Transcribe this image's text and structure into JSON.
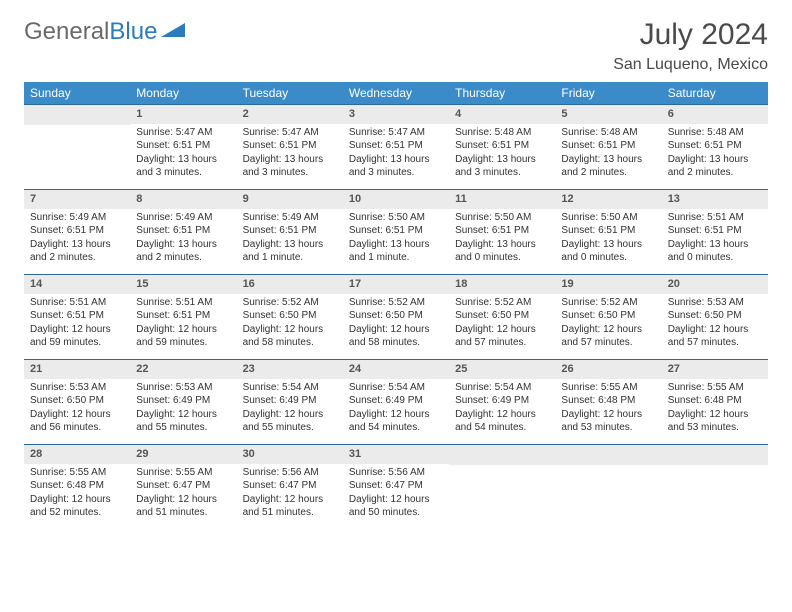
{
  "logo": {
    "part1": "General",
    "part2": "Blue"
  },
  "title": "July 2024",
  "location": "San Luqueno, Mexico",
  "colors": {
    "header_bg": "#3b8bc9",
    "header_text": "#ffffff",
    "daynum_bg": "#ebebeb",
    "row_border": "#2b6aa0",
    "logo_gray": "#6a6a6a",
    "logo_blue": "#2b7bbf"
  },
  "weekdays": [
    "Sunday",
    "Monday",
    "Tuesday",
    "Wednesday",
    "Thursday",
    "Friday",
    "Saturday"
  ],
  "weeks": [
    [
      {
        "n": "",
        "sr": "",
        "ss": "",
        "dl": ""
      },
      {
        "n": "1",
        "sr": "Sunrise: 5:47 AM",
        "ss": "Sunset: 6:51 PM",
        "dl": "Daylight: 13 hours and 3 minutes."
      },
      {
        "n": "2",
        "sr": "Sunrise: 5:47 AM",
        "ss": "Sunset: 6:51 PM",
        "dl": "Daylight: 13 hours and 3 minutes."
      },
      {
        "n": "3",
        "sr": "Sunrise: 5:47 AM",
        "ss": "Sunset: 6:51 PM",
        "dl": "Daylight: 13 hours and 3 minutes."
      },
      {
        "n": "4",
        "sr": "Sunrise: 5:48 AM",
        "ss": "Sunset: 6:51 PM",
        "dl": "Daylight: 13 hours and 3 minutes."
      },
      {
        "n": "5",
        "sr": "Sunrise: 5:48 AM",
        "ss": "Sunset: 6:51 PM",
        "dl": "Daylight: 13 hours and 2 minutes."
      },
      {
        "n": "6",
        "sr": "Sunrise: 5:48 AM",
        "ss": "Sunset: 6:51 PM",
        "dl": "Daylight: 13 hours and 2 minutes."
      }
    ],
    [
      {
        "n": "7",
        "sr": "Sunrise: 5:49 AM",
        "ss": "Sunset: 6:51 PM",
        "dl": "Daylight: 13 hours and 2 minutes."
      },
      {
        "n": "8",
        "sr": "Sunrise: 5:49 AM",
        "ss": "Sunset: 6:51 PM",
        "dl": "Daylight: 13 hours and 2 minutes."
      },
      {
        "n": "9",
        "sr": "Sunrise: 5:49 AM",
        "ss": "Sunset: 6:51 PM",
        "dl": "Daylight: 13 hours and 1 minute."
      },
      {
        "n": "10",
        "sr": "Sunrise: 5:50 AM",
        "ss": "Sunset: 6:51 PM",
        "dl": "Daylight: 13 hours and 1 minute."
      },
      {
        "n": "11",
        "sr": "Sunrise: 5:50 AM",
        "ss": "Sunset: 6:51 PM",
        "dl": "Daylight: 13 hours and 0 minutes."
      },
      {
        "n": "12",
        "sr": "Sunrise: 5:50 AM",
        "ss": "Sunset: 6:51 PM",
        "dl": "Daylight: 13 hours and 0 minutes."
      },
      {
        "n": "13",
        "sr": "Sunrise: 5:51 AM",
        "ss": "Sunset: 6:51 PM",
        "dl": "Daylight: 13 hours and 0 minutes."
      }
    ],
    [
      {
        "n": "14",
        "sr": "Sunrise: 5:51 AM",
        "ss": "Sunset: 6:51 PM",
        "dl": "Daylight: 12 hours and 59 minutes."
      },
      {
        "n": "15",
        "sr": "Sunrise: 5:51 AM",
        "ss": "Sunset: 6:51 PM",
        "dl": "Daylight: 12 hours and 59 minutes."
      },
      {
        "n": "16",
        "sr": "Sunrise: 5:52 AM",
        "ss": "Sunset: 6:50 PM",
        "dl": "Daylight: 12 hours and 58 minutes."
      },
      {
        "n": "17",
        "sr": "Sunrise: 5:52 AM",
        "ss": "Sunset: 6:50 PM",
        "dl": "Daylight: 12 hours and 58 minutes."
      },
      {
        "n": "18",
        "sr": "Sunrise: 5:52 AM",
        "ss": "Sunset: 6:50 PM",
        "dl": "Daylight: 12 hours and 57 minutes."
      },
      {
        "n": "19",
        "sr": "Sunrise: 5:52 AM",
        "ss": "Sunset: 6:50 PM",
        "dl": "Daylight: 12 hours and 57 minutes."
      },
      {
        "n": "20",
        "sr": "Sunrise: 5:53 AM",
        "ss": "Sunset: 6:50 PM",
        "dl": "Daylight: 12 hours and 57 minutes."
      }
    ],
    [
      {
        "n": "21",
        "sr": "Sunrise: 5:53 AM",
        "ss": "Sunset: 6:50 PM",
        "dl": "Daylight: 12 hours and 56 minutes."
      },
      {
        "n": "22",
        "sr": "Sunrise: 5:53 AM",
        "ss": "Sunset: 6:49 PM",
        "dl": "Daylight: 12 hours and 55 minutes."
      },
      {
        "n": "23",
        "sr": "Sunrise: 5:54 AM",
        "ss": "Sunset: 6:49 PM",
        "dl": "Daylight: 12 hours and 55 minutes."
      },
      {
        "n": "24",
        "sr": "Sunrise: 5:54 AM",
        "ss": "Sunset: 6:49 PM",
        "dl": "Daylight: 12 hours and 54 minutes."
      },
      {
        "n": "25",
        "sr": "Sunrise: 5:54 AM",
        "ss": "Sunset: 6:49 PM",
        "dl": "Daylight: 12 hours and 54 minutes."
      },
      {
        "n": "26",
        "sr": "Sunrise: 5:55 AM",
        "ss": "Sunset: 6:48 PM",
        "dl": "Daylight: 12 hours and 53 minutes."
      },
      {
        "n": "27",
        "sr": "Sunrise: 5:55 AM",
        "ss": "Sunset: 6:48 PM",
        "dl": "Daylight: 12 hours and 53 minutes."
      }
    ],
    [
      {
        "n": "28",
        "sr": "Sunrise: 5:55 AM",
        "ss": "Sunset: 6:48 PM",
        "dl": "Daylight: 12 hours and 52 minutes."
      },
      {
        "n": "29",
        "sr": "Sunrise: 5:55 AM",
        "ss": "Sunset: 6:47 PM",
        "dl": "Daylight: 12 hours and 51 minutes."
      },
      {
        "n": "30",
        "sr": "Sunrise: 5:56 AM",
        "ss": "Sunset: 6:47 PM",
        "dl": "Daylight: 12 hours and 51 minutes."
      },
      {
        "n": "31",
        "sr": "Sunrise: 5:56 AM",
        "ss": "Sunset: 6:47 PM",
        "dl": "Daylight: 12 hours and 50 minutes."
      },
      {
        "n": "",
        "sr": "",
        "ss": "",
        "dl": ""
      },
      {
        "n": "",
        "sr": "",
        "ss": "",
        "dl": ""
      },
      {
        "n": "",
        "sr": "",
        "ss": "",
        "dl": ""
      }
    ]
  ]
}
